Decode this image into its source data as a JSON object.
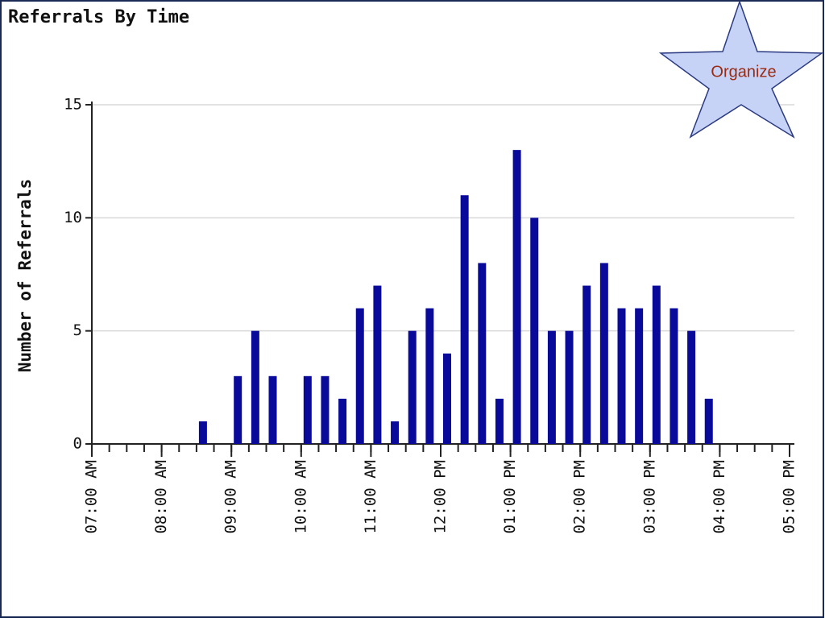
{
  "chart_data": {
    "type": "bar",
    "title": "Referrals By Time",
    "y_label": "Number of Referrals",
    "annotation": "Organize",
    "x": [
      8.5,
      9.0,
      9.25,
      9.5,
      10.0,
      10.25,
      10.5,
      10.75,
      11.0,
      11.25,
      11.5,
      11.75,
      12.0,
      12.25,
      12.5,
      12.75,
      13.0,
      13.25,
      13.5,
      13.75,
      14.0,
      14.25,
      14.5,
      14.75,
      15.0,
      15.25,
      15.5,
      15.75
    ],
    "values": [
      1,
      3,
      5,
      3,
      3,
      3,
      2,
      6,
      7,
      1,
      5,
      6,
      4,
      11,
      8,
      2,
      13,
      10,
      5,
      5,
      7,
      8,
      6,
      6,
      7,
      6,
      5,
      2
    ],
    "color": "#0a0a9a",
    "xlim": [
      7,
      17
    ],
    "xticks": [
      {
        "value": 7,
        "label": "07:00 AM"
      },
      {
        "value": 8,
        "label": "08:00 AM"
      },
      {
        "value": 9,
        "label": "09:00 AM"
      },
      {
        "value": 10,
        "label": "10:00 AM"
      },
      {
        "value": 11,
        "label": "11:00 AM"
      },
      {
        "value": 12,
        "label": "12:00 PM"
      },
      {
        "value": 13,
        "label": "01:00 PM"
      },
      {
        "value": 14,
        "label": "02:00 PM"
      },
      {
        "value": 15,
        "label": "03:00 PM"
      },
      {
        "value": 16,
        "label": "04:00 PM"
      },
      {
        "value": 17,
        "label": "05:00 PM"
      }
    ],
    "ylim": [
      0,
      15
    ],
    "yticks": [
      0,
      5,
      10,
      15
    ],
    "grid": true
  }
}
